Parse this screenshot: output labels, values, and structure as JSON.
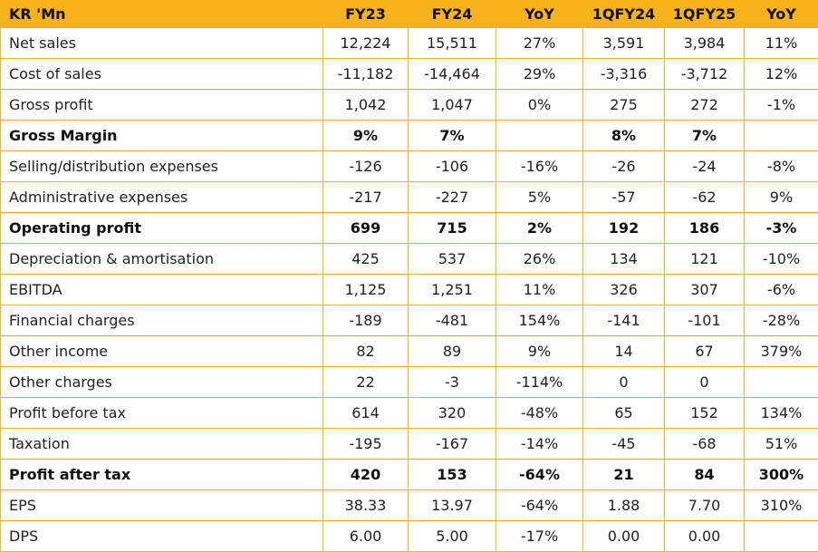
{
  "colors": {
    "header_bg": "#f5b21b",
    "border": "#f5b21b",
    "text": "#222222"
  },
  "header": [
    "KR 'Mn",
    "FY23",
    "FY24",
    "YoY",
    "1QFY24",
    "1QFY25",
    "YoY"
  ],
  "rows": [
    {
      "bold": false,
      "cells": [
        "Net sales",
        "12,224",
        "15,511",
        "27%",
        "3,591",
        "3,984",
        "11%"
      ]
    },
    {
      "bold": false,
      "cells": [
        "Cost of sales",
        "-11,182",
        "-14,464",
        "29%",
        "-3,316",
        "-3,712",
        "12%"
      ]
    },
    {
      "bold": false,
      "cells": [
        "Gross profit",
        "1,042",
        "1,047",
        "0%",
        "275",
        "272",
        "-1%"
      ]
    },
    {
      "bold": true,
      "cells": [
        "Gross Margin",
        "9%",
        "7%",
        "",
        "8%",
        "7%",
        ""
      ]
    },
    {
      "bold": false,
      "cells": [
        "Selling/distribution expenses",
        "-126",
        "-106",
        "-16%",
        "-26",
        "-24",
        "-8%"
      ]
    },
    {
      "bold": false,
      "cells": [
        "Administrative expenses",
        "-217",
        "-227",
        "5%",
        "-57",
        "-62",
        "9%"
      ]
    },
    {
      "bold": true,
      "cells": [
        "Operating profit",
        "699",
        "715",
        "2%",
        "192",
        "186",
        "-3%"
      ]
    },
    {
      "bold": false,
      "cells": [
        "Depreciation & amortisation",
        "425",
        "537",
        "26%",
        "134",
        "121",
        "-10%"
      ]
    },
    {
      "bold": false,
      "cells": [
        "EBITDA",
        "1,125",
        "1,251",
        "11%",
        "326",
        "307",
        "-6%"
      ]
    },
    {
      "bold": false,
      "cells": [
        "Financial charges",
        "-189",
        "-481",
        "154%",
        "-141",
        "-101",
        "-28%"
      ]
    },
    {
      "bold": false,
      "cells": [
        "Other income",
        "82",
        "89",
        "9%",
        "14",
        "67",
        "379%"
      ]
    },
    {
      "bold": false,
      "cells": [
        "Other charges",
        "22",
        "-3",
        "-114%",
        "0",
        "0",
        ""
      ]
    },
    {
      "bold": false,
      "cells": [
        "Profit before tax",
        "614",
        "320",
        "-48%",
        "65",
        "152",
        "134%"
      ]
    },
    {
      "bold": false,
      "cells": [
        "Taxation",
        "-195",
        "-167",
        "-14%",
        "-45",
        "-68",
        "51%"
      ]
    },
    {
      "bold": true,
      "cells": [
        "Profit after tax",
        "420",
        "153",
        "-64%",
        "21",
        "84",
        "300%"
      ]
    },
    {
      "bold": false,
      "cells": [
        "EPS",
        "38.33",
        "13.97",
        "-64%",
        "1.88",
        "7.70",
        "310%"
      ]
    },
    {
      "bold": false,
      "cells": [
        "DPS",
        "6.00",
        "5.00",
        "-17%",
        "0.00",
        "0.00",
        ""
      ]
    }
  ]
}
